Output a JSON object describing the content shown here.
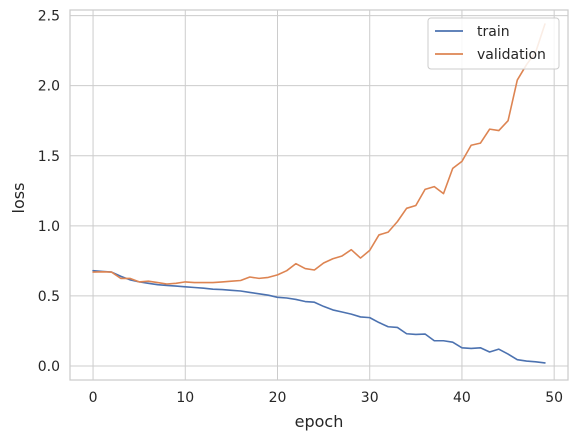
{
  "chart_data": {
    "type": "line",
    "title": "",
    "xlabel": "epoch",
    "ylabel": "loss",
    "xlim": [
      -2.5,
      51.5
    ],
    "ylim": [
      -0.1,
      2.54
    ],
    "xticks": [
      0,
      10,
      20,
      30,
      40,
      50
    ],
    "xtick_labels": [
      "0",
      "10",
      "20",
      "30",
      "40",
      "50"
    ],
    "yticks": [
      0.0,
      0.5,
      1.0,
      1.5,
      2.0,
      2.5
    ],
    "ytick_labels": [
      "0.0",
      "0.5",
      "1.0",
      "1.5",
      "2.0",
      "2.5"
    ],
    "grid": true,
    "legend": {
      "position": "top-right"
    },
    "x": [
      0,
      1,
      2,
      3,
      4,
      5,
      6,
      7,
      8,
      9,
      10,
      11,
      12,
      13,
      14,
      15,
      16,
      17,
      18,
      19,
      20,
      21,
      22,
      23,
      24,
      25,
      26,
      27,
      28,
      29,
      30,
      31,
      32,
      33,
      34,
      35,
      36,
      37,
      38,
      39,
      40,
      41,
      42,
      43,
      44,
      45,
      46,
      47,
      48,
      49
    ],
    "series": [
      {
        "name": "train",
        "color": "#4c72b0",
        "values": [
          0.68,
          0.675,
          0.67,
          0.64,
          0.615,
          0.6,
          0.59,
          0.58,
          0.575,
          0.57,
          0.565,
          0.56,
          0.555,
          0.548,
          0.545,
          0.54,
          0.535,
          0.525,
          0.515,
          0.505,
          0.49,
          0.485,
          0.475,
          0.46,
          0.455,
          0.425,
          0.4,
          0.385,
          0.37,
          0.35,
          0.345,
          0.31,
          0.28,
          0.275,
          0.23,
          0.225,
          0.228,
          0.18,
          0.18,
          0.17,
          0.13,
          0.125,
          0.13,
          0.1,
          0.12,
          0.085,
          0.045,
          0.035,
          0.03,
          0.022
        ]
      },
      {
        "name": "validation",
        "color": "#dd8452",
        "values": [
          0.67,
          0.672,
          0.67,
          0.625,
          0.625,
          0.6,
          0.605,
          0.595,
          0.585,
          0.59,
          0.6,
          0.595,
          0.595,
          0.595,
          0.6,
          0.605,
          0.61,
          0.635,
          0.625,
          0.632,
          0.65,
          0.68,
          0.73,
          0.695,
          0.685,
          0.735,
          0.765,
          0.785,
          0.83,
          0.77,
          0.825,
          0.935,
          0.955,
          1.03,
          1.125,
          1.145,
          1.26,
          1.28,
          1.23,
          1.41,
          1.46,
          1.575,
          1.59,
          1.69,
          1.68,
          1.75,
          2.04,
          2.15,
          2.24,
          2.44
        ]
      }
    ]
  }
}
